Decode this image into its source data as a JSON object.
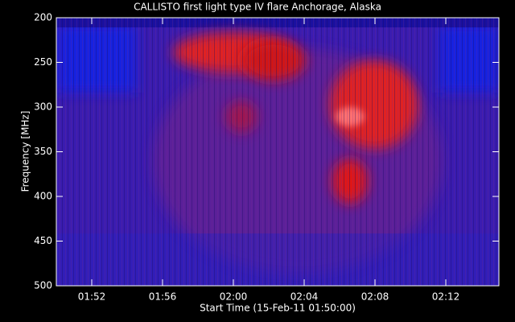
{
  "chart_data": {
    "type": "spectrogram",
    "title": "CALLISTO first light type IV flare Anchorage, Alaska",
    "xlabel": "Start Time (15-Feb-11 01:50:00)",
    "ylabel": "Frequency [MHz]",
    "xlim": [
      "01:50",
      "02:15"
    ],
    "xticks": [
      "01:52",
      "01:56",
      "02:00",
      "02:04",
      "02:08",
      "02:12"
    ],
    "ylim": [
      200,
      500
    ],
    "yticks": [
      200,
      250,
      300,
      350,
      400,
      450,
      500
    ]
  }
}
